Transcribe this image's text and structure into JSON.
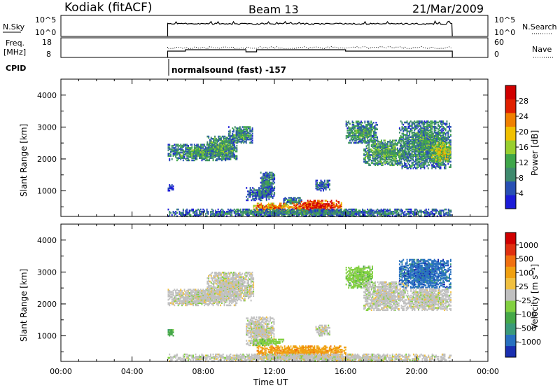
{
  "header": {
    "station": "Kodiak (fitACF)",
    "beam": "Beam 13",
    "date": "21/Mar/2009"
  },
  "noise_panel": {
    "left_label": "N.Sky",
    "left_ticks": [
      "10^5",
      "10^0"
    ],
    "right_ticks": [
      "10^5",
      "10^0"
    ],
    "right_label": "N.Search",
    "line_start_hour": 6.0,
    "line_end_hour": 22.0
  },
  "freq_panel": {
    "left_label_1": "Freq.",
    "left_label_2": "[MHz]",
    "left_ticks": [
      "18",
      "8"
    ],
    "right_ticks": [
      "60",
      "0"
    ],
    "right_label": "Nave"
  },
  "cpid": {
    "label": "CPID",
    "text": "normalsound (fast) -157"
  },
  "colors": {
    "power": [
      "#1c1cd8",
      "#2850b4",
      "#3f8a6e",
      "#3fa64a",
      "#99cf2e",
      "#f0c000",
      "#f08000",
      "#e02000",
      "#d00000"
    ],
    "velocity": [
      "#1a2fb0",
      "#2870c0",
      "#3a9a7a",
      "#45a848",
      "#82d040",
      "#c0c0c0",
      "#f0c040",
      "#f0a010",
      "#f07010",
      "#e03010",
      "#d00000"
    ]
  },
  "chart_data": [
    {
      "type": "heatmap",
      "name": "power",
      "ylabel": "Slant Range [km]",
      "yticks": [
        1000,
        2000,
        3000,
        4000
      ],
      "ylim": [
        200,
        4500
      ],
      "xlim": [
        0,
        24
      ],
      "colorbar_label": "Power [dB]",
      "colorbar_ticks": [
        4,
        8,
        12,
        16,
        20,
        24,
        28
      ],
      "colorbar_range": [
        0,
        32
      ],
      "blobs": [
        {
          "t0": 6.0,
          "t1": 9.9,
          "r0": 1950,
          "r1": 2450,
          "level": 0.35
        },
        {
          "t0": 8.2,
          "t1": 9.8,
          "r0": 2100,
          "r1": 2700,
          "level": 0.4
        },
        {
          "t0": 9.4,
          "t1": 10.8,
          "r0": 2500,
          "r1": 3000,
          "level": 0.35
        },
        {
          "t0": 10.4,
          "t1": 12.0,
          "r0": 700,
          "r1": 1100,
          "level": 0.25
        },
        {
          "t0": 11.2,
          "t1": 12.0,
          "r0": 900,
          "r1": 1600,
          "level": 0.3
        },
        {
          "t0": 10.8,
          "t1": 13.0,
          "r0": 350,
          "r1": 600,
          "level": 0.75
        },
        {
          "t0": 13.0,
          "t1": 15.8,
          "r0": 300,
          "r1": 700,
          "level": 0.9
        },
        {
          "t0": 12.5,
          "t1": 13.5,
          "r0": 600,
          "r1": 800,
          "level": 0.3
        },
        {
          "t0": 16.0,
          "t1": 17.8,
          "r0": 2500,
          "r1": 3200,
          "level": 0.35
        },
        {
          "t0": 17.0,
          "t1": 19.5,
          "r0": 1800,
          "r1": 2600,
          "level": 0.4
        },
        {
          "t0": 19.0,
          "t1": 21.9,
          "r0": 1700,
          "r1": 3200,
          "level": 0.35
        },
        {
          "t0": 20.8,
          "t1": 21.9,
          "r0": 1900,
          "r1": 2500,
          "level": 0.55
        },
        {
          "t0": 6.0,
          "t1": 21.9,
          "r0": 200,
          "r1": 420,
          "level": 0.3
        },
        {
          "t0": 6.0,
          "t1": 6.3,
          "r0": 1000,
          "r1": 1200,
          "level": 0.1
        },
        {
          "t0": 14.3,
          "t1": 15.1,
          "r0": 1000,
          "r1": 1350,
          "level": 0.25
        }
      ]
    },
    {
      "type": "heatmap",
      "name": "velocity",
      "ylabel": "Slant Range [km]",
      "yticks": [
        1000,
        2000,
        3000,
        4000
      ],
      "ylim": [
        200,
        4500
      ],
      "xlim": [
        0,
        24
      ],
      "xlabel": "Time UT",
      "xticks": [
        "00:00",
        "04:00",
        "08:00",
        "12:00",
        "16:00",
        "20:00",
        "00:00"
      ],
      "colorbar_label": "Velocity [m s⁻¹]",
      "colorbar_ticks": [
        1000,
        500,
        100,
        25,
        -25,
        -100,
        -500,
        -1000
      ],
      "blobs": [
        {
          "t0": 6.0,
          "t1": 9.9,
          "r0": 1950,
          "r1": 2450,
          "level": 5
        },
        {
          "t0": 8.2,
          "t1": 10.8,
          "r0": 2100,
          "r1": 3000,
          "level": 5
        },
        {
          "t0": 10.4,
          "t1": 12.0,
          "r0": 700,
          "r1": 1600,
          "level": 5
        },
        {
          "t0": 10.8,
          "t1": 12.5,
          "r0": 700,
          "r1": 900,
          "level": 4
        },
        {
          "t0": 11.0,
          "t1": 16.0,
          "r0": 280,
          "r1": 700,
          "level": 7
        },
        {
          "t0": 16.0,
          "t1": 17.5,
          "r0": 2500,
          "r1": 3200,
          "level": 4
        },
        {
          "t0": 17.0,
          "t1": 19.5,
          "r0": 1800,
          "r1": 2700,
          "level": 5
        },
        {
          "t0": 19.0,
          "t1": 21.9,
          "r0": 2500,
          "r1": 3400,
          "level": 1
        },
        {
          "t0": 19.5,
          "t1": 21.9,
          "r0": 1800,
          "r1": 2500,
          "level": 5
        },
        {
          "t0": 6.0,
          "t1": 21.9,
          "r0": 200,
          "r1": 420,
          "level": 5
        },
        {
          "t0": 6.0,
          "t1": 6.3,
          "r0": 1000,
          "r1": 1200,
          "level": 3
        },
        {
          "t0": 14.3,
          "t1": 15.1,
          "r0": 1000,
          "r1": 1350,
          "level": 5
        }
      ]
    }
  ]
}
